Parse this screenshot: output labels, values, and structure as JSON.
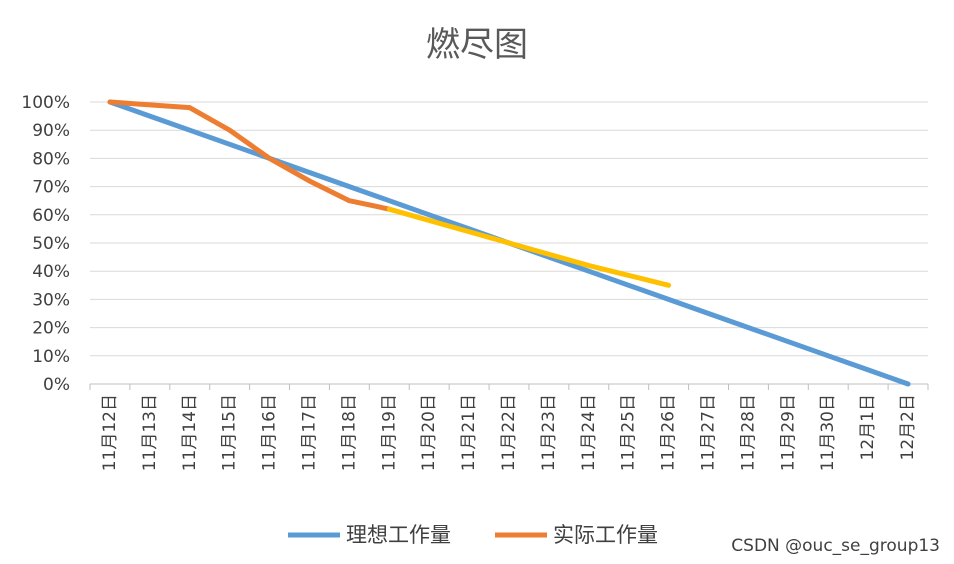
{
  "chart_data": {
    "type": "line",
    "title": "燃尽图",
    "xlabel": "",
    "ylabel": "",
    "ylim": [
      0,
      100
    ],
    "categories": [
      "11月12日",
      "11月13日",
      "11月14日",
      "11月15日",
      "11月16日",
      "11月17日",
      "11月18日",
      "11月19日",
      "11月20日",
      "11月21日",
      "11月22日",
      "11月23日",
      "11月24日",
      "11月25日",
      "11月26日",
      "11月27日",
      "11月28日",
      "11月29日",
      "11月30日",
      "12月1日",
      "12月2日"
    ],
    "y_ticks": [
      "0%",
      "10%",
      "20%",
      "30%",
      "40%",
      "50%",
      "60%",
      "70%",
      "80%",
      "90%",
      "100%"
    ],
    "series": [
      {
        "name": "理想工作量",
        "color": "#5B9BD5",
        "values": [
          100,
          95,
          90,
          85,
          80,
          75,
          70,
          65,
          60,
          55,
          50,
          45,
          40,
          35,
          30,
          25,
          20,
          15,
          10,
          5,
          0
        ]
      },
      {
        "name": "实际工作量",
        "color": "#ED7D31",
        "values": [
          100,
          99,
          98,
          90,
          80,
          72,
          65,
          62,
          null,
          null,
          null,
          null,
          null,
          null,
          null,
          null,
          null,
          null,
          null,
          null,
          null
        ]
      },
      {
        "name": "",
        "color": "#FFC000",
        "values": [
          null,
          null,
          null,
          null,
          null,
          null,
          null,
          62,
          58,
          54,
          50,
          46,
          42,
          38.5,
          35,
          null,
          null,
          null,
          null,
          null,
          null
        ]
      }
    ],
    "legend": [
      "理想工作量",
      "实际工作量"
    ],
    "legend_position": "bottom",
    "grid": true
  },
  "watermark": "CSDN @ouc_se_group13"
}
